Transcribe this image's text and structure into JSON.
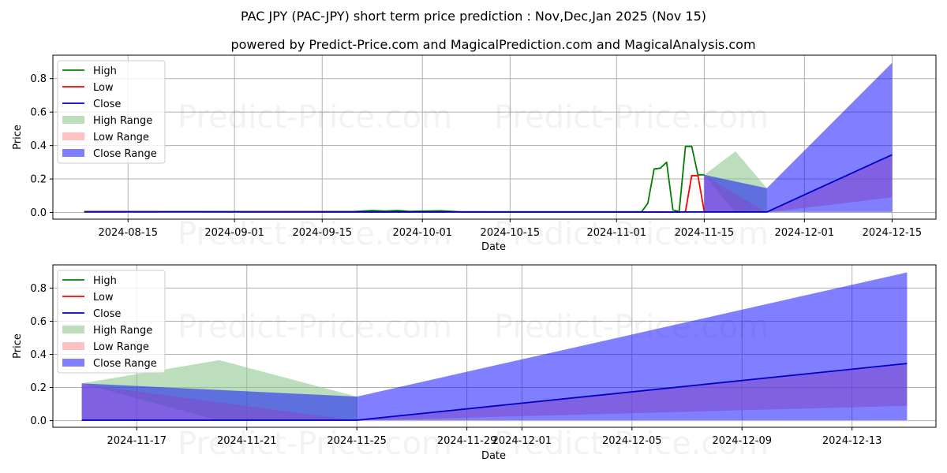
{
  "title": "PAC JPY (PAC-JPY) short term price prediction : Nov,Dec,Jan 2025 (Nov 15)",
  "subtitle": "powered by Predict-Price.com and MagicalPrediction.com and MagicalAnalysis.com",
  "watermark": "Predict-Price.com",
  "colors": {
    "high": "#008000",
    "low": "#ff0000",
    "close": "#0000cd",
    "high_range": "#90c890",
    "low_range": "#ff9999",
    "close_range": "#0000ff"
  },
  "chart_data": [
    {
      "type": "line",
      "xlabel": "Date",
      "ylabel": "Price",
      "grid": true,
      "legend_position": "upper-left",
      "legend": [
        "High",
        "Low",
        "Close",
        "High Range",
        "Low Range",
        "Close Range"
      ],
      "x_domain": [
        "2024-08-03",
        "2024-12-22"
      ],
      "ylim": [
        -0.04,
        0.94
      ],
      "x_ticks": [
        "2024-08-15",
        "2024-09-01",
        "2024-09-15",
        "2024-10-01",
        "2024-10-15",
        "2024-11-01",
        "2024-11-15",
        "2024-12-01",
        "2024-12-15"
      ],
      "y_ticks": [
        0.0,
        0.2,
        0.4,
        0.6,
        0.8
      ],
      "y_tick_labels": [
        "0.0",
        "0.2",
        "0.4",
        "0.6",
        "0.8"
      ],
      "series": [
        {
          "name": "High",
          "x": [
            "2024-08-08",
            "2024-09-01",
            "2024-09-20",
            "2024-09-23",
            "2024-09-25",
            "2024-09-27",
            "2024-09-29",
            "2024-10-01",
            "2024-10-04",
            "2024-10-07",
            "2024-11-05",
            "2024-11-06",
            "2024-11-07",
            "2024-11-08",
            "2024-11-09",
            "2024-11-10",
            "2024-11-11",
            "2024-11-12",
            "2024-11-13",
            "2024-11-14",
            "2024-11-15"
          ],
          "values": [
            0.005,
            0.005,
            0.005,
            0.012,
            0.008,
            0.012,
            0.006,
            0.008,
            0.01,
            0.004,
            0.004,
            0.055,
            0.26,
            0.265,
            0.3,
            0.015,
            0.005,
            0.395,
            0.395,
            0.225,
            0.225
          ]
        },
        {
          "name": "Low",
          "x": [
            "2024-08-08",
            "2024-10-07",
            "2024-11-11",
            "2024-11-12",
            "2024-11-13",
            "2024-11-14",
            "2024-11-15"
          ],
          "values": [
            0.004,
            0.003,
            0.002,
            0.005,
            0.22,
            0.22,
            0.005
          ]
        },
        {
          "name": "Close",
          "x": [
            "2024-08-08",
            "2024-11-11",
            "2024-11-15",
            "2024-11-25",
            "2024-12-15"
          ],
          "values": [
            0.004,
            0.003,
            0.003,
            0.003,
            0.345
          ]
        }
      ],
      "ranges": [
        {
          "name": "High Range",
          "x": [
            "2024-11-15",
            "2024-11-20",
            "2024-11-25"
          ],
          "upper": [
            0.225,
            0.365,
            0.145
          ],
          "lower": [
            0.225,
            0.0,
            0.0
          ]
        },
        {
          "name": "Low Range",
          "x": [
            "2024-11-15",
            "2024-11-25",
            "2024-12-15"
          ],
          "upper": [
            0.22,
            0.0,
            0.345
          ],
          "lower": [
            0.0,
            0.0,
            0.09
          ]
        },
        {
          "name": "Close Range",
          "x": [
            "2024-11-15",
            "2024-11-25",
            "2024-12-15"
          ],
          "upper": [
            0.225,
            0.145,
            0.895
          ],
          "lower": [
            0.003,
            0.003,
            0.003
          ]
        }
      ]
    },
    {
      "type": "line",
      "xlabel": "Date",
      "ylabel": "Price",
      "grid": true,
      "legend_position": "upper-left",
      "legend": [
        "High",
        "Low",
        "Close",
        "High Range",
        "Low Range",
        "Close Range"
      ],
      "x_domain": [
        "2024-11-13.95",
        "2024-12-16.05"
      ],
      "ylim": [
        -0.04,
        0.94
      ],
      "x_ticks": [
        "2024-11-17",
        "2024-11-21",
        "2024-11-25",
        "2024-11-29",
        "2024-12-01",
        "2024-12-05",
        "2024-12-09",
        "2024-12-13"
      ],
      "y_ticks": [
        0.0,
        0.2,
        0.4,
        0.6,
        0.8
      ],
      "y_tick_labels": [
        "0.0",
        "0.2",
        "0.4",
        "0.6",
        "0.8"
      ],
      "series": [
        {
          "name": "High",
          "x": [],
          "values": []
        },
        {
          "name": "Low",
          "x": [],
          "values": []
        },
        {
          "name": "Close",
          "x": [
            "2024-11-15",
            "2024-11-25",
            "2024-12-15"
          ],
          "values": [
            0.003,
            0.003,
            0.345
          ]
        }
      ],
      "ranges": [
        {
          "name": "High Range",
          "x": [
            "2024-11-15",
            "2024-11-20",
            "2024-11-25"
          ],
          "upper": [
            0.225,
            0.365,
            0.145
          ],
          "lower": [
            0.225,
            0.0,
            0.0
          ]
        },
        {
          "name": "Low Range",
          "x": [
            "2024-11-15",
            "2024-11-25",
            "2024-12-15"
          ],
          "upper": [
            0.22,
            0.0,
            0.345
          ],
          "lower": [
            0.0,
            0.0,
            0.09
          ]
        },
        {
          "name": "Close Range",
          "x": [
            "2024-11-15",
            "2024-11-25",
            "2024-12-15"
          ],
          "upper": [
            0.225,
            0.145,
            0.895
          ],
          "lower": [
            0.003,
            0.003,
            0.003
          ]
        }
      ]
    }
  ]
}
